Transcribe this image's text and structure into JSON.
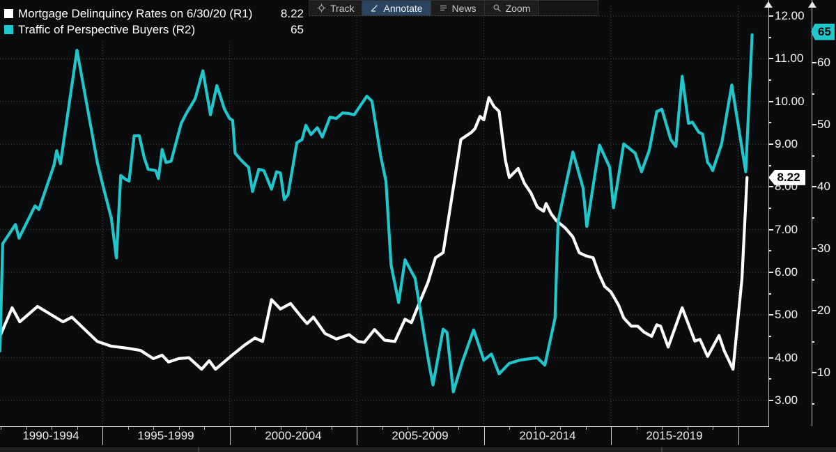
{
  "legend": {
    "items": [
      {
        "label": "Mortgage Delinquincy Rates on 6/30/20 (R1)",
        "value": "8.22",
        "color": "#ffffff"
      },
      {
        "label": "Traffic of Perspective Buyers (R2)",
        "value": "65",
        "color": "#1fc6cb"
      }
    ]
  },
  "toolbar": {
    "items": [
      {
        "label": "Track",
        "icon": "track-icon",
        "active": false
      },
      {
        "label": "Annotate",
        "icon": "annotate-icon",
        "active": true
      },
      {
        "label": "News",
        "icon": "news-icon",
        "active": false
      },
      {
        "label": "Zoom",
        "icon": "zoom-icon",
        "active": false
      }
    ]
  },
  "chart_data": {
    "type": "line",
    "title": "",
    "grid": {
      "horizontal": true,
      "vertical": true,
      "style": "dotted"
    },
    "x_axis": {
      "segment_labels": [
        "1990-1994",
        "1995-1999",
        "2000-2004",
        "2005-2009",
        "2010-2014",
        "2015-2019"
      ],
      "segment_boundary_years": [
        1995,
        2000,
        2005,
        2010,
        2015,
        2020
      ],
      "start_year": 1990.97,
      "end_year": 2020.7
    },
    "y_axis_r1": {
      "side": "right-inner",
      "ticks": [
        {
          "v": 12,
          "label": "12.00"
        },
        {
          "v": 11,
          "label": "11.00"
        },
        {
          "v": 10,
          "label": "10.00"
        },
        {
          "v": 9,
          "label": "9.00"
        },
        {
          "v": 8,
          "label": "8.00"
        },
        {
          "v": 7,
          "label": "7.00"
        },
        {
          "v": 6,
          "label": "6.00"
        },
        {
          "v": 5,
          "label": "5.00"
        },
        {
          "v": 4,
          "label": "4.00"
        },
        {
          "v": 3,
          "label": "3.00"
        }
      ],
      "minor_tick_values": [
        3.5,
        4.5,
        5.5,
        6.5,
        7.5,
        8.5,
        9.5,
        10.5,
        11.5
      ],
      "last_value": 8.22,
      "last_value_label": "8.22",
      "badge_color": "#ffffff"
    },
    "y_axis_r2": {
      "side": "right-outer",
      "ticks": [
        {
          "v": 60,
          "label": "60"
        },
        {
          "v": 50,
          "label": "50"
        },
        {
          "v": 40,
          "label": "40"
        },
        {
          "v": 30,
          "label": "30"
        },
        {
          "v": 20,
          "label": "20"
        },
        {
          "v": 10,
          "label": "10"
        }
      ],
      "minor_tick_values": [
        5,
        15,
        25,
        35,
        45,
        55,
        65
      ],
      "last_value": 65,
      "last_value_label": "65",
      "badge_color": "#1fc6cb"
    },
    "series": [
      {
        "name": "Mortgage Delinquincy Rates",
        "axis": "R1",
        "color": "#ffffff",
        "points": [
          [
            1990.97,
            4.5
          ],
          [
            1991.45,
            5.17
          ],
          [
            1991.75,
            4.84
          ],
          [
            1992.45,
            5.2
          ],
          [
            1993.45,
            4.84
          ],
          [
            1993.8,
            4.95
          ],
          [
            1994.8,
            4.38
          ],
          [
            1995.35,
            4.27
          ],
          [
            1996.0,
            4.22
          ],
          [
            1996.5,
            4.17
          ],
          [
            1997.0,
            3.98
          ],
          [
            1997.35,
            4.06
          ],
          [
            1997.6,
            3.9
          ],
          [
            1998.0,
            3.98
          ],
          [
            1998.4,
            4.0
          ],
          [
            1998.9,
            3.73
          ],
          [
            1999.2,
            3.93
          ],
          [
            1999.45,
            3.73
          ],
          [
            2000.1,
            4.06
          ],
          [
            2000.6,
            4.3
          ],
          [
            2001.0,
            4.46
          ],
          [
            2001.3,
            4.38
          ],
          [
            2001.65,
            5.36
          ],
          [
            2002.0,
            5.14
          ],
          [
            2002.4,
            5.27
          ],
          [
            2002.8,
            4.97
          ],
          [
            2003.05,
            4.8
          ],
          [
            2003.3,
            4.95
          ],
          [
            2003.75,
            4.57
          ],
          [
            2004.2,
            4.44
          ],
          [
            2004.7,
            4.54
          ],
          [
            2005.05,
            4.38
          ],
          [
            2005.3,
            4.36
          ],
          [
            2005.7,
            4.66
          ],
          [
            2006.1,
            4.41
          ],
          [
            2006.5,
            4.38
          ],
          [
            2006.9,
            4.9
          ],
          [
            2007.15,
            4.82
          ],
          [
            2007.4,
            5.19
          ],
          [
            2007.8,
            5.76
          ],
          [
            2008.1,
            6.34
          ],
          [
            2008.4,
            6.46
          ],
          [
            2009.1,
            9.11
          ],
          [
            2009.3,
            9.19
          ],
          [
            2009.5,
            9.27
          ],
          [
            2009.65,
            9.36
          ],
          [
            2009.85,
            9.65
          ],
          [
            2010.0,
            9.57
          ],
          [
            2010.2,
            10.09
          ],
          [
            2010.4,
            9.88
          ],
          [
            2010.6,
            9.77
          ],
          [
            2010.85,
            8.62
          ],
          [
            2011.0,
            8.22
          ],
          [
            2011.35,
            8.43
          ],
          [
            2011.6,
            8.08
          ],
          [
            2011.85,
            7.86
          ],
          [
            2012.1,
            7.53
          ],
          [
            2012.35,
            7.43
          ],
          [
            2012.45,
            7.61
          ],
          [
            2012.65,
            7.37
          ],
          [
            2012.85,
            7.21
          ],
          [
            2013.2,
            7.04
          ],
          [
            2013.5,
            6.83
          ],
          [
            2013.75,
            6.46
          ],
          [
            2014.0,
            6.39
          ],
          [
            2014.3,
            6.34
          ],
          [
            2014.5,
            6.0
          ],
          [
            2014.75,
            5.67
          ],
          [
            2015.0,
            5.54
          ],
          [
            2015.3,
            5.23
          ],
          [
            2015.5,
            4.93
          ],
          [
            2015.8,
            4.74
          ],
          [
            2016.05,
            4.74
          ],
          [
            2016.3,
            4.6
          ],
          [
            2016.6,
            4.5
          ],
          [
            2016.8,
            4.77
          ],
          [
            2016.95,
            4.74
          ],
          [
            2017.25,
            4.25
          ],
          [
            2017.8,
            5.17
          ],
          [
            2018.3,
            4.39
          ],
          [
            2018.5,
            4.43
          ],
          [
            2018.8,
            4.03
          ],
          [
            2019.25,
            4.52
          ],
          [
            2019.45,
            4.17
          ],
          [
            2019.8,
            3.73
          ],
          [
            2020.15,
            5.85
          ],
          [
            2020.35,
            8.22
          ]
        ]
      },
      {
        "name": "Traffic of Perspective Buyers",
        "axis": "R2",
        "color": "#1fc6cb",
        "points": [
          [
            1990.97,
            13.5
          ],
          [
            1991.08,
            30.8
          ],
          [
            1991.58,
            33.9
          ],
          [
            1991.72,
            31.7
          ],
          [
            1992.35,
            36.9
          ],
          [
            1992.5,
            36.3
          ],
          [
            1993.1,
            43.5
          ],
          [
            1993.2,
            45.8
          ],
          [
            1993.35,
            43.7
          ],
          [
            1994.0,
            62.0
          ],
          [
            1994.8,
            43.9
          ],
          [
            1995.0,
            40.5
          ],
          [
            1995.35,
            34.9
          ],
          [
            1995.55,
            28.5
          ],
          [
            1995.72,
            41.8
          ],
          [
            1995.9,
            41.2
          ],
          [
            1996.05,
            40.9
          ],
          [
            1996.25,
            48.2
          ],
          [
            1996.45,
            48.2
          ],
          [
            1996.65,
            44.6
          ],
          [
            1996.8,
            42.8
          ],
          [
            1997.1,
            42.6
          ],
          [
            1997.2,
            41.3
          ],
          [
            1997.35,
            46.0
          ],
          [
            1997.5,
            43.9
          ],
          [
            1997.7,
            44.1
          ],
          [
            1998.1,
            50.2
          ],
          [
            1998.3,
            51.8
          ],
          [
            1998.65,
            54.2
          ],
          [
            1998.95,
            58.7
          ],
          [
            1999.25,
            51.6
          ],
          [
            1999.5,
            56.3
          ],
          [
            1999.8,
            52.5
          ],
          [
            2000.0,
            51.0
          ],
          [
            2000.12,
            50.7
          ],
          [
            2000.22,
            45.4
          ],
          [
            2000.45,
            44.3
          ],
          [
            2000.75,
            43.1
          ],
          [
            2000.9,
            39.2
          ],
          [
            2001.15,
            42.8
          ],
          [
            2001.35,
            42.6
          ],
          [
            2001.65,
            39.6
          ],
          [
            2001.85,
            42.4
          ],
          [
            2002.0,
            42.2
          ],
          [
            2002.15,
            37.9
          ],
          [
            2002.3,
            38.7
          ],
          [
            2002.65,
            47.1
          ],
          [
            2002.85,
            47.6
          ],
          [
            2003.0,
            49.9
          ],
          [
            2003.2,
            48.4
          ],
          [
            2003.45,
            49.5
          ],
          [
            2003.65,
            48.0
          ],
          [
            2003.95,
            51.2
          ],
          [
            2004.2,
            51.0
          ],
          [
            2004.45,
            51.9
          ],
          [
            2004.7,
            51.8
          ],
          [
            2004.9,
            51.6
          ],
          [
            2005.4,
            54.6
          ],
          [
            2005.6,
            53.8
          ],
          [
            2005.95,
            44.8
          ],
          [
            2006.15,
            40.9
          ],
          [
            2006.35,
            27.4
          ],
          [
            2006.65,
            21.3
          ],
          [
            2006.9,
            28.2
          ],
          [
            2007.3,
            25.2
          ],
          [
            2007.65,
            16.2
          ],
          [
            2007.85,
            11.3
          ],
          [
            2008.0,
            8.0
          ],
          [
            2008.4,
            17.0
          ],
          [
            2008.55,
            16.5
          ],
          [
            2008.8,
            6.9
          ],
          [
            2009.15,
            11.7
          ],
          [
            2009.6,
            16.9
          ],
          [
            2010.0,
            12.0
          ],
          [
            2010.3,
            13.0
          ],
          [
            2010.6,
            9.8
          ],
          [
            2011.0,
            11.5
          ],
          [
            2011.4,
            12.0
          ],
          [
            2012.1,
            12.4
          ],
          [
            2012.4,
            11.2
          ],
          [
            2012.8,
            18.8
          ],
          [
            2012.92,
            34.4
          ],
          [
            2013.5,
            45.6
          ],
          [
            2013.9,
            39.8
          ],
          [
            2014.05,
            33.6
          ],
          [
            2014.55,
            46.7
          ],
          [
            2014.95,
            43.1
          ],
          [
            2015.1,
            36.6
          ],
          [
            2015.5,
            46.9
          ],
          [
            2015.95,
            45.4
          ],
          [
            2016.2,
            42.4
          ],
          [
            2016.5,
            45.8
          ],
          [
            2016.8,
            52.1
          ],
          [
            2017.0,
            52.5
          ],
          [
            2017.35,
            47.6
          ],
          [
            2017.55,
            46.5
          ],
          [
            2017.8,
            57.8
          ],
          [
            2018.05,
            50.2
          ],
          [
            2018.2,
            50.4
          ],
          [
            2018.45,
            48.8
          ],
          [
            2018.6,
            48.5
          ],
          [
            2018.8,
            43.9
          ],
          [
            2018.9,
            43.4
          ],
          [
            2019.0,
            42.6
          ],
          [
            2019.35,
            46.9
          ],
          [
            2019.75,
            56.4
          ],
          [
            2020.3,
            42.4
          ],
          [
            2020.55,
            64.5
          ]
        ]
      }
    ]
  },
  "colors": {
    "background": "#0a0b0c",
    "gridline": "#4c4c4c",
    "axis_line": "#bfbfbf",
    "tick_label": "#f7f7f7",
    "series_white": "#ffffff",
    "series_cyan": "#1fc6cb"
  }
}
